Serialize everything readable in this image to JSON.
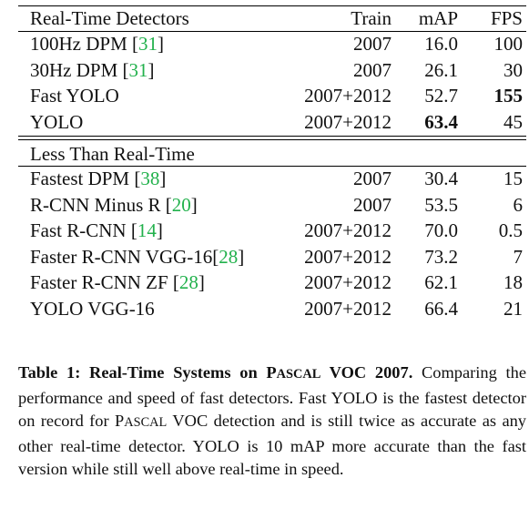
{
  "table": {
    "header": {
      "method": "Real-Time Detectors",
      "train": "Train",
      "map": "mAP",
      "fps": "FPS"
    },
    "section2_title": "Less Than Real-Time",
    "realtime_rows": [
      {
        "name": "100Hz DPM ",
        "cite": "31",
        "train": "2007",
        "map": "16.0",
        "fps": "100"
      },
      {
        "name": "30Hz DPM ",
        "cite": "31",
        "train": "2007",
        "map": "26.1",
        "fps": "30"
      },
      {
        "name": "Fast YOLO",
        "cite": "",
        "train": "2007+2012",
        "map": "52.7",
        "fps": "155"
      },
      {
        "name": "YOLO",
        "cite": "",
        "train": "2007+2012",
        "map": "63.4",
        "fps": "45"
      }
    ],
    "slow_rows": [
      {
        "name": "Fastest DPM ",
        "cite": "38",
        "train": "2007",
        "map": "30.4",
        "fps": "15"
      },
      {
        "name": "R-CNN Minus R ",
        "cite": "20",
        "train": "2007",
        "map": "53.5",
        "fps": "6"
      },
      {
        "name": "Fast R-CNN ",
        "cite": "14",
        "train": "2007+2012",
        "map": "70.0",
        "fps": "0.5"
      },
      {
        "name": "Faster R-CNN VGG-16",
        "cite": "28",
        "train": "2007+2012",
        "map": "73.2",
        "fps": "7"
      },
      {
        "name": "Faster R-CNN ZF ",
        "cite": "28",
        "train": "2007+2012",
        "map": "62.1",
        "fps": "18"
      },
      {
        "name": "YOLO VGG-16",
        "cite": "",
        "train": "2007+2012",
        "map": "66.4",
        "fps": "21"
      }
    ]
  },
  "caption": {
    "label": "Table 1:",
    "title_pre": " Real-Time Systems on ",
    "title_sc_P": "P",
    "title_sc_rest": "ASCAL",
    "title_post": " VOC 2007.",
    "body_1": " Comparing the performance and speed of fast detectors. Fast YOLO is the fastest detector on record for ",
    "body_sc_P": "P",
    "body_sc_rest": "ASCAL",
    "body_2": " VOC detection and is still twice as accurate as any other real-time detector. YOLO is 10 mAP more accurate than the fast version while still well above real-time in speed."
  }
}
